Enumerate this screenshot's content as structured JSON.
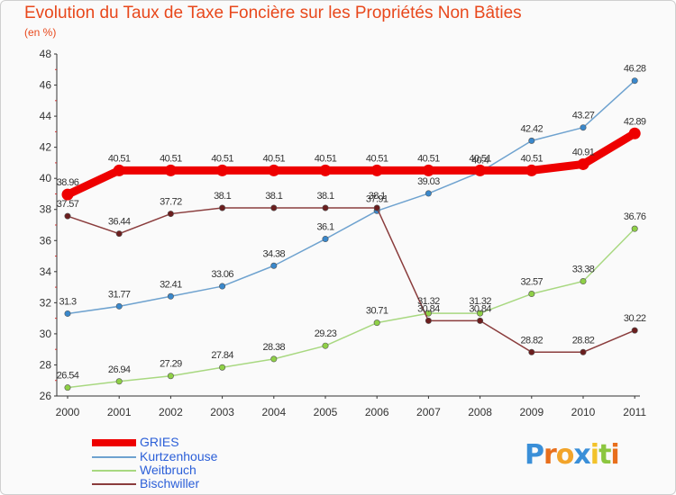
{
  "chart_data": {
    "type": "line",
    "title": "Evolution du Taux de Taxe Foncière sur les Propriétés Non Bâties",
    "unit_label": "(en %)",
    "xlabel": "",
    "ylabel": "",
    "categories": [
      "2000",
      "2001",
      "2002",
      "2003",
      "2004",
      "2005",
      "2006",
      "2007",
      "2008",
      "2009",
      "2010",
      "2011"
    ],
    "ylim": [
      26,
      48
    ],
    "yticks": [
      26,
      28,
      30,
      32,
      34,
      36,
      38,
      40,
      42,
      44,
      46,
      48
    ],
    "grid": false,
    "legend_position": "bottom-left",
    "series": [
      {
        "name": "Kurtzenhouse",
        "color": "#6ea2cf",
        "marker": "#3a88cc",
        "values": [
          31.3,
          31.77,
          32.41,
          33.06,
          34.38,
          36.1,
          37.91,
          39.03,
          40.4,
          42.42,
          43.27,
          46.28
        ],
        "labels": [
          "31.3",
          "31.77",
          "32.41",
          "33.06",
          "34.38",
          "36.1",
          "37.91",
          "39.03",
          "40.4",
          "42.42",
          "43.27",
          "46.28"
        ]
      },
      {
        "name": "Weitbruch",
        "color": "#a8d880",
        "marker": "#8fd046",
        "values": [
          26.54,
          26.94,
          27.29,
          27.84,
          28.38,
          29.23,
          30.71,
          31.32,
          31.32,
          32.57,
          33.38,
          36.76
        ],
        "labels": [
          "26.54",
          "26.94",
          "27.29",
          "27.84",
          "28.38",
          "29.23",
          "30.71",
          "31.32",
          "31.32",
          "32.57",
          "33.38",
          "36.76"
        ]
      },
      {
        "name": "Bischwiller",
        "color": "#8a3c3c",
        "marker": "#6b1e1e",
        "values": [
          37.57,
          36.44,
          37.72,
          38.1,
          38.1,
          38.1,
          38.1,
          30.84,
          30.84,
          28.82,
          28.82,
          30.22
        ],
        "labels": [
          "37.57",
          "36.44",
          "37.72",
          "38.1",
          "38.1",
          "38.1",
          "38.1",
          "30.84",
          "30.84",
          "28.82",
          "28.82",
          "30.22"
        ]
      },
      {
        "name": "GRIES",
        "color": "#ee0000",
        "marker": "#ee0000",
        "values": [
          38.96,
          40.51,
          40.51,
          40.51,
          40.51,
          40.51,
          40.51,
          40.51,
          40.51,
          40.51,
          40.91,
          42.89
        ],
        "labels": [
          "38.96",
          "40.51",
          "40.51",
          "40.51",
          "40.51",
          "40.51",
          "40.51",
          "40.51",
          "40.51",
          "40.51",
          "40.91",
          "42.89"
        ]
      }
    ],
    "legend_order": [
      "GRIES",
      "Kurtzenhouse",
      "Weitbruch",
      "Bischwiller"
    ]
  },
  "logo": {
    "letters": [
      "P",
      "r",
      "o",
      "x",
      "i",
      "t",
      "i"
    ],
    "colors": [
      "#3a8fd8",
      "#e86f1c",
      "#f2a42a",
      "#3a8fd8",
      "#f2c22a",
      "#8cc63f",
      "#e86f1c"
    ]
  }
}
